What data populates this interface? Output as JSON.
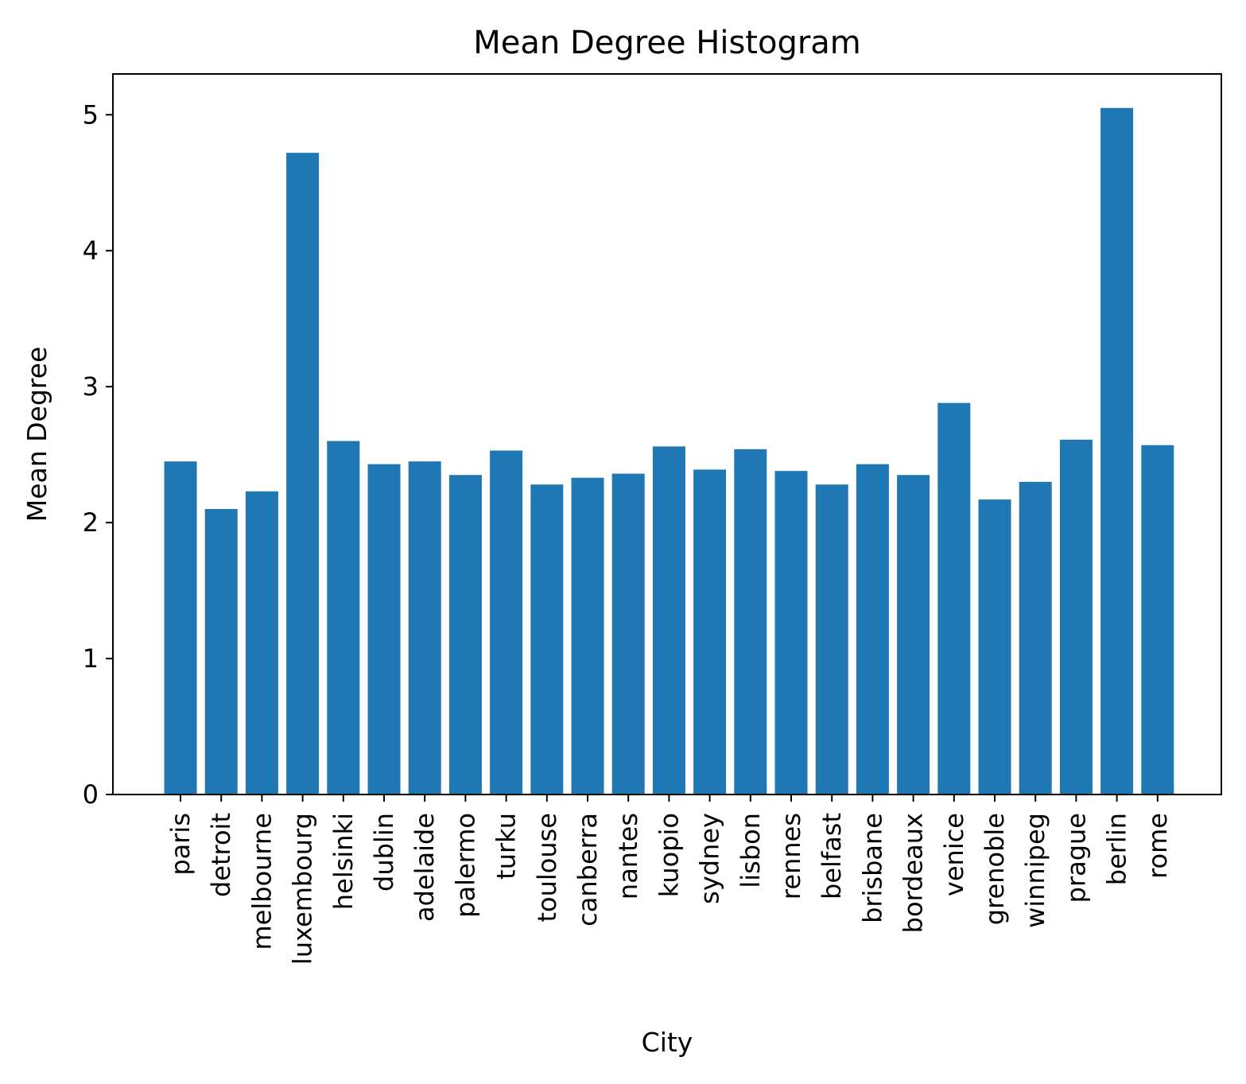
{
  "chart_data": {
    "type": "bar",
    "title": "Mean Degree Histogram",
    "xlabel": "City",
    "ylabel": "Mean Degree",
    "ylim": [
      0,
      5.3
    ],
    "yticks": [
      0,
      1,
      2,
      3,
      4,
      5
    ],
    "grid": false,
    "bar_color": "#1f77b4",
    "categories": [
      "paris",
      "detroit",
      "melbourne",
      "luxembourg",
      "helsinki",
      "dublin",
      "adelaide",
      "palermo",
      "turku",
      "toulouse",
      "canberra",
      "nantes",
      "kuopio",
      "sydney",
      "lisbon",
      "rennes",
      "belfast",
      "brisbane",
      "bordeaux",
      "venice",
      "grenoble",
      "winnipeg",
      "prague",
      "berlin",
      "rome"
    ],
    "values": [
      2.45,
      2.1,
      2.23,
      4.72,
      2.6,
      2.43,
      2.45,
      2.35,
      2.53,
      2.28,
      2.33,
      2.36,
      2.56,
      2.39,
      2.54,
      2.38,
      2.28,
      2.43,
      2.35,
      2.88,
      2.17,
      2.3,
      2.61,
      5.05,
      2.57
    ]
  }
}
